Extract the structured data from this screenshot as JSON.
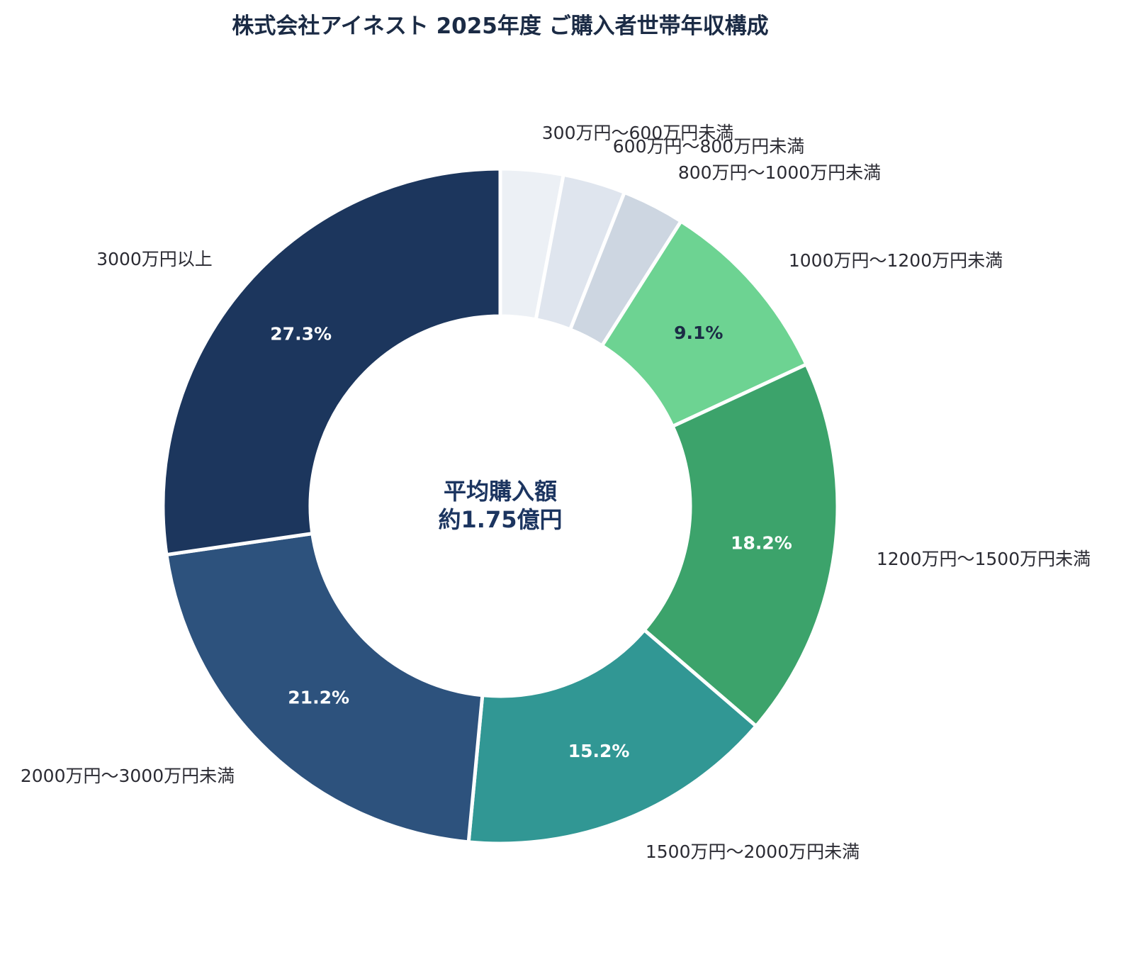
{
  "chart_data": {
    "type": "pie",
    "variant": "donut",
    "title": "株式会社アイネスト 2025年度 ご購入者世帯年収構成",
    "center_text": [
      "平均購入額",
      "約1.75億円"
    ],
    "legend": "none",
    "slices": [
      {
        "label": "300万円～600万円未満",
        "value": 3.0,
        "value_label": "",
        "color": "#ecf0f5",
        "text_color": "#1b2b45"
      },
      {
        "label": "600万円～800万円未満",
        "value": 3.0,
        "value_label": "",
        "color": "#dfe5ee",
        "text_color": "#1b2b45"
      },
      {
        "label": "800万円～1000万円未満",
        "value": 3.0,
        "value_label": "",
        "color": "#cdd6e1",
        "text_color": "#1b2b45"
      },
      {
        "label": "1000万円～1200万円未満",
        "value": 9.1,
        "value_label": "9.1%",
        "color": "#6dd392",
        "text_color": "#1b2b45"
      },
      {
        "label": "1200万円～1500万円未満",
        "value": 18.2,
        "value_label": "18.2%",
        "color": "#3ca36b",
        "text_color": "#ffffff"
      },
      {
        "label": "1500万円～2000万円未満",
        "value": 15.2,
        "value_label": "15.2%",
        "color": "#319794",
        "text_color": "#ffffff"
      },
      {
        "label": "2000万円～3000万円未満",
        "value": 21.2,
        "value_label": "21.2%",
        "color": "#2d527d",
        "text_color": "#ffffff"
      },
      {
        "label": "3000万円以上",
        "value": 27.3,
        "value_label": "27.3%",
        "color": "#1c365d",
        "text_color": "#ffffff"
      }
    ]
  }
}
